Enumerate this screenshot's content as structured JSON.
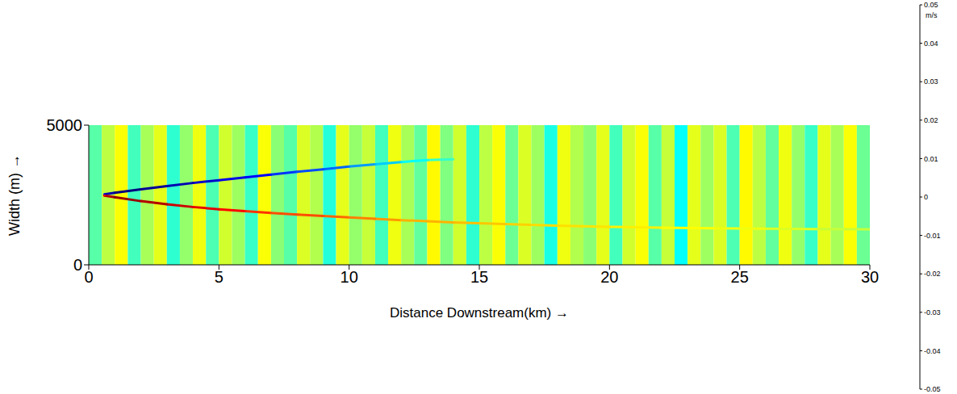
{
  "chart_data": {
    "type": "heatmap",
    "x_label": "Distance Downstream(km) →",
    "y_label": "Width (m) →",
    "xlim": [
      0,
      30
    ],
    "xticks": [
      0,
      5,
      10,
      15,
      20,
      25,
      30
    ],
    "ylim": [
      0,
      5000
    ],
    "yticks": [
      0,
      5000
    ],
    "grid": false,
    "column_edges": [
      0,
      0.5,
      1,
      1.5,
      2,
      2.5,
      3,
      3.5,
      4,
      4.5,
      5,
      5.5,
      6,
      6.5,
      7,
      7.5,
      8,
      8.5,
      9,
      9.5,
      10,
      10.5,
      11,
      11.5,
      12,
      12.5,
      13,
      13.5,
      14,
      14.5,
      15,
      15.5,
      16,
      16.5,
      17,
      17.5,
      18,
      18.5,
      19,
      19.5,
      20,
      20.5,
      21,
      21.5,
      22,
      22.5,
      23,
      23.5,
      24,
      24.5,
      25,
      25.5,
      26,
      26.5,
      27,
      27.5,
      28,
      28.5,
      29,
      29.5,
      30
    ],
    "column_values": [
      -0.004,
      0.006,
      0.012,
      -0.006,
      0.004,
      0.01,
      -0.008,
      0.002,
      0.011,
      -0.005,
      0.008,
      0.003,
      -0.007,
      0.012,
      0.001,
      -0.004,
      0.009,
      0.005,
      -0.009,
      0.01,
      0.002,
      0.007,
      -0.006,
      0.011,
      0.004,
      -0.003,
      0.013,
      0,
      0.008,
      -0.008,
      0.006,
      0.012,
      -0.002,
      0.009,
      0.003,
      -0.01,
      0.011,
      0.005,
      0.001,
      0.01,
      -0.006,
      0.008,
      0.012,
      -0.004,
      0.007,
      -0.012,
      0.01,
      0.003,
      0.009,
      -0.005,
      0.013,
      0.006,
      -0.003,
      0.011,
      0.002,
      -0.007,
      0.01,
      0.004,
      0.012,
      -0.002
    ],
    "wake_upper": {
      "x": [
        0.6,
        1,
        2,
        3,
        4,
        5,
        6,
        7,
        8,
        9,
        10,
        11,
        12,
        13,
        14
      ],
      "y": [
        2520,
        2580,
        2700,
        2820,
        2930,
        3030,
        3130,
        3230,
        3330,
        3420,
        3520,
        3600,
        3680,
        3750,
        3780
      ],
      "values": [
        -0.04,
        -0.05,
        -0.05,
        -0.045,
        -0.045,
        -0.04,
        -0.04,
        -0.035,
        -0.03,
        -0.03,
        -0.025,
        -0.02,
        -0.015,
        -0.01,
        -0.005
      ]
    },
    "wake_lower": {
      "x": [
        0.6,
        1,
        2,
        3,
        4,
        5,
        6,
        7,
        8,
        9,
        10,
        11,
        12,
        13,
        14,
        15,
        16,
        17,
        18,
        19,
        20,
        22,
        24,
        26,
        28,
        30
      ],
      "y": [
        2480,
        2420,
        2280,
        2170,
        2070,
        1990,
        1920,
        1860,
        1800,
        1750,
        1700,
        1650,
        1600,
        1560,
        1520,
        1490,
        1460,
        1430,
        1400,
        1380,
        1360,
        1330,
        1310,
        1290,
        1280,
        1270
      ],
      "values": [
        0.04,
        0.05,
        0.045,
        0.045,
        0.04,
        0.04,
        0.035,
        0.03,
        0.03,
        0.03,
        0.025,
        0.025,
        0.02,
        0.02,
        0.02,
        0.018,
        0.018,
        0.016,
        0.016,
        0.015,
        0.015,
        0.013,
        0.012,
        0.01,
        0.008,
        0.006
      ]
    },
    "colorbar": {
      "range": [
        -0.05,
        0.05
      ],
      "ticks": [
        -0.05,
        -0.04,
        -0.03,
        -0.02,
        -0.01,
        0,
        0.01,
        0.02,
        0.03,
        0.04,
        0.05
      ],
      "label": "m/s"
    }
  }
}
